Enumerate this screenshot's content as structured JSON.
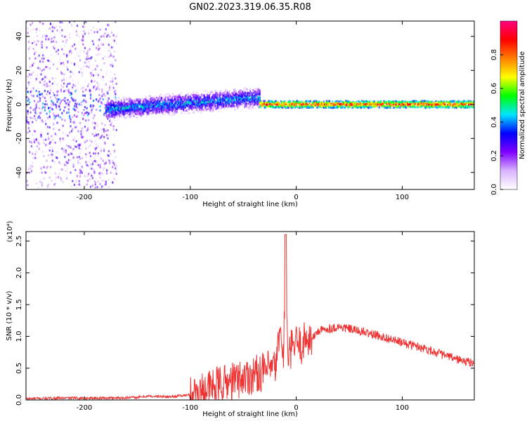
{
  "title": "GN02.2023.319.06.35.R08",
  "chart_data": [
    {
      "type": "heatmap",
      "xlabel": "Height of straight line (km)",
      "ylabel": "Frequency (Hz)",
      "xlim": [
        -255,
        168
      ],
      "ylim": [
        -50,
        49
      ],
      "xticks": [
        -200,
        -100,
        0,
        100
      ],
      "yticks": [
        -40,
        -20,
        0,
        20,
        40
      ],
      "colorbar": {
        "label": "Normalized spectral amplitude",
        "ticks": [
          0.0,
          0.2,
          0.4,
          0.6,
          0.8
        ],
        "range": [
          0,
          1
        ],
        "colormap": [
          "#ffffff",
          "#d9b3ff",
          "#7f00ff",
          "#0000ff",
          "#00e5ff",
          "#00ff00",
          "#ffff00",
          "#ff7f00",
          "#ff0000",
          "#ff0080"
        ]
      },
      "regions": [
        {
          "x_range": [
            -255,
            -170
          ],
          "freq_spread_hz": 49,
          "peak_amplitude": 0.3
        },
        {
          "x_range": [
            -180,
            -35
          ],
          "freq_center_hz": [
            -3,
            4
          ],
          "freq_spread_hz": 8,
          "peak_amplitude": 0.45
        },
        {
          "x_range": [
            -35,
            168
          ],
          "freq_center_hz": 0,
          "freq_spread_hz": 2,
          "peak_amplitude": 0.95
        }
      ]
    },
    {
      "type": "line",
      "xlabel": "Height of straight line (km)",
      "ylabel": "SNR (10 * v/v)",
      "yscale_label": "(x10⁴)",
      "xlim": [
        -255,
        168
      ],
      "ylim": [
        0,
        2.65
      ],
      "xticks": [
        -200,
        -100,
        0,
        100
      ],
      "yticks": [
        0.0,
        0.5,
        1.0,
        1.5,
        2.0,
        2.5
      ],
      "color": "#ee3333",
      "series": [
        {
          "x": [
            -255,
            -220,
            -180,
            -150,
            -140,
            -120,
            -100,
            -80,
            -60,
            -40,
            -30,
            -20,
            -15,
            -12,
            -10,
            -8,
            -5,
            0,
            5,
            10,
            15,
            20,
            30,
            40,
            50,
            60,
            80,
            100,
            120,
            140,
            160,
            168
          ],
          "y": [
            0.02,
            0.03,
            0.03,
            0.04,
            0.06,
            0.05,
            0.08,
            0.2,
            0.3,
            0.4,
            0.45,
            0.5,
            1.05,
            0.6,
            2.6,
            0.55,
            0.8,
            0.9,
            0.85,
            1.0,
            0.95,
            1.08,
            1.12,
            1.15,
            1.12,
            1.08,
            1.0,
            0.9,
            0.82,
            0.7,
            0.6,
            0.58
          ]
        }
      ]
    }
  ]
}
